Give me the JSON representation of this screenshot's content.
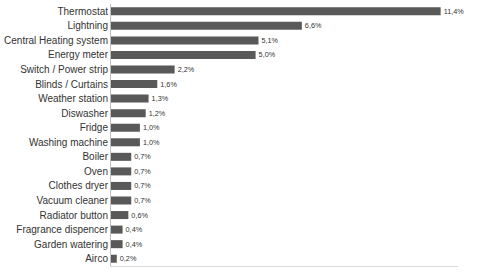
{
  "chart_data": {
    "type": "bar",
    "orientation": "horizontal",
    "categories": [
      "Thermostat",
      "Lightning",
      "Central Heating system",
      "Energy meter",
      "Switch / Power strip",
      "Blinds / Curtains",
      "Weather station",
      "Diswasher",
      "Fridge",
      "Washing machine",
      "Boiler",
      "Oven",
      "Clothes dryer",
      "Vacuum cleaner",
      "Radiator button",
      "Fragrance dispencer",
      "Garden watering",
      "Airco"
    ],
    "values": [
      11.4,
      6.6,
      5.1,
      5.0,
      2.2,
      1.6,
      1.3,
      1.2,
      1.0,
      1.0,
      0.7,
      0.7,
      0.7,
      0.7,
      0.6,
      0.4,
      0.4,
      0.2
    ],
    "value_labels": [
      "11,4%",
      "6,6%",
      "5,1%",
      "5,0%",
      "2,2%",
      "1,6%",
      "1,3%",
      "1,2%",
      "1,0%",
      "1,0%",
      "0,7%",
      "0,7%",
      "0,7%",
      "0,7%",
      "0,6%",
      "0,4%",
      "0,4%",
      "0,2%"
    ],
    "color": "#595959",
    "xlim": [
      0,
      12
    ],
    "data_labels": true,
    "tick_labels": "y",
    "grid": false
  }
}
